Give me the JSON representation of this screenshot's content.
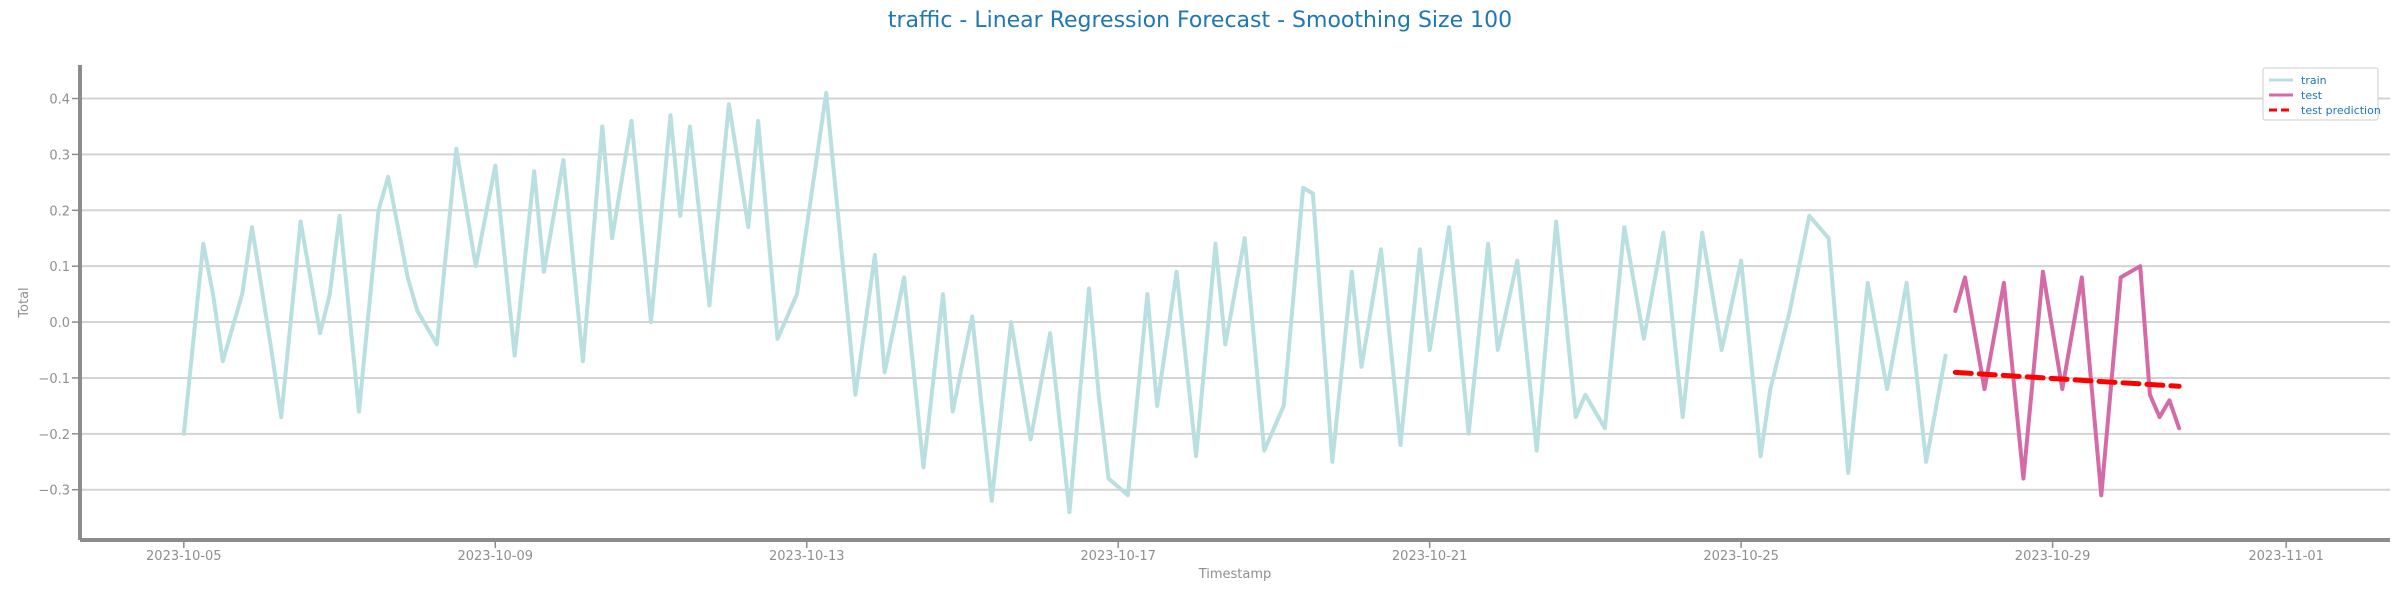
{
  "chart_data": {
    "type": "line",
    "title": "traffic - Linear Regression Forecast - Smoothing Size 100",
    "xlabel": "Timestamp",
    "ylabel": "Total",
    "xlim": [
      "2023-10-03T16:00",
      "2023-11-02T08:00"
    ],
    "ylim": [
      -0.39,
      0.46
    ],
    "x_ticks": [
      "2023-10-05",
      "2023-10-09",
      "2023-10-13",
      "2023-10-17",
      "2023-10-21",
      "2023-10-25",
      "2023-10-29",
      "2023-11-01"
    ],
    "y_ticks": [
      -0.3,
      -0.2,
      -0.1,
      0.0,
      0.1,
      0.2,
      0.3,
      0.4
    ],
    "y_tick_labels": [
      "−0.3",
      "−0.2",
      "−0.1",
      "0.0",
      "0.1",
      "0.2",
      "0.3",
      "0.4"
    ],
    "grid": "horizontal",
    "legend_position": "top-right",
    "series": [
      {
        "name": "train",
        "color": "#b9dfe0",
        "style": "solid",
        "points": [
          [
            "2023-10-05T00:00",
            -0.2
          ],
          [
            "2023-10-05T06:00",
            0.14
          ],
          [
            "2023-10-05T09:00",
            0.05
          ],
          [
            "2023-10-05T12:00",
            -0.07
          ],
          [
            "2023-10-05T18:00",
            0.05
          ],
          [
            "2023-10-05T21:00",
            0.17
          ],
          [
            "2023-10-06T03:00",
            -0.05
          ],
          [
            "2023-10-06T06:00",
            -0.17
          ],
          [
            "2023-10-06T12:00",
            0.18
          ],
          [
            "2023-10-06T18:00",
            -0.02
          ],
          [
            "2023-10-06T21:00",
            0.05
          ],
          [
            "2023-10-07T00:00",
            0.19
          ],
          [
            "2023-10-07T06:00",
            -0.16
          ],
          [
            "2023-10-07T12:00",
            0.2
          ],
          [
            "2023-10-07T15:00",
            0.26
          ],
          [
            "2023-10-07T21:00",
            0.08
          ],
          [
            "2023-10-08T00:00",
            0.02
          ],
          [
            "2023-10-08T06:00",
            -0.04
          ],
          [
            "2023-10-08T12:00",
            0.31
          ],
          [
            "2023-10-08T18:00",
            0.1
          ],
          [
            "2023-10-09T00:00",
            0.28
          ],
          [
            "2023-10-09T06:00",
            -0.06
          ],
          [
            "2023-10-09T12:00",
            0.27
          ],
          [
            "2023-10-09T15:00",
            0.09
          ],
          [
            "2023-10-09T21:00",
            0.29
          ],
          [
            "2023-10-10T03:00",
            -0.07
          ],
          [
            "2023-10-10T09:00",
            0.35
          ],
          [
            "2023-10-10T12:00",
            0.15
          ],
          [
            "2023-10-10T18:00",
            0.36
          ],
          [
            "2023-10-11T00:00",
            0.0
          ],
          [
            "2023-10-11T06:00",
            0.37
          ],
          [
            "2023-10-11T09:00",
            0.19
          ],
          [
            "2023-10-11T12:00",
            0.35
          ],
          [
            "2023-10-11T18:00",
            0.03
          ],
          [
            "2023-10-12T00:00",
            0.39
          ],
          [
            "2023-10-12T06:00",
            0.17
          ],
          [
            "2023-10-12T09:00",
            0.36
          ],
          [
            "2023-10-12T15:00",
            -0.03
          ],
          [
            "2023-10-12T21:00",
            0.05
          ],
          [
            "2023-10-13T06:00",
            0.41
          ],
          [
            "2023-10-13T12:00",
            0.05
          ],
          [
            "2023-10-13T15:00",
            -0.13
          ],
          [
            "2023-10-13T21:00",
            0.12
          ],
          [
            "2023-10-14T00:00",
            -0.09
          ],
          [
            "2023-10-14T06:00",
            0.08
          ],
          [
            "2023-10-14T12:00",
            -0.26
          ],
          [
            "2023-10-14T18:00",
            0.05
          ],
          [
            "2023-10-14T21:00",
            -0.16
          ],
          [
            "2023-10-15T03:00",
            0.01
          ],
          [
            "2023-10-15T09:00",
            -0.32
          ],
          [
            "2023-10-15T15:00",
            0.0
          ],
          [
            "2023-10-15T21:00",
            -0.21
          ],
          [
            "2023-10-16T03:00",
            -0.02
          ],
          [
            "2023-10-16T09:00",
            -0.34
          ],
          [
            "2023-10-16T15:00",
            0.06
          ],
          [
            "2023-10-16T18:00",
            -0.13
          ],
          [
            "2023-10-16T21:00",
            -0.28
          ],
          [
            "2023-10-17T03:00",
            -0.31
          ],
          [
            "2023-10-17T09:00",
            0.05
          ],
          [
            "2023-10-17T12:00",
            -0.15
          ],
          [
            "2023-10-17T18:00",
            0.09
          ],
          [
            "2023-10-18T00:00",
            -0.24
          ],
          [
            "2023-10-18T06:00",
            0.14
          ],
          [
            "2023-10-18T09:00",
            -0.04
          ],
          [
            "2023-10-18T15:00",
            0.15
          ],
          [
            "2023-10-18T21:00",
            -0.23
          ],
          [
            "2023-10-19T03:00",
            -0.15
          ],
          [
            "2023-10-19T09:00",
            0.24
          ],
          [
            "2023-10-19T12:00",
            0.23
          ],
          [
            "2023-10-19T18:00",
            -0.25
          ],
          [
            "2023-10-20T00:00",
            0.09
          ],
          [
            "2023-10-20T03:00",
            -0.08
          ],
          [
            "2023-10-20T09:00",
            0.13
          ],
          [
            "2023-10-20T15:00",
            -0.22
          ],
          [
            "2023-10-20T21:00",
            0.13
          ],
          [
            "2023-10-21T00:00",
            -0.05
          ],
          [
            "2023-10-21T06:00",
            0.17
          ],
          [
            "2023-10-21T12:00",
            -0.2
          ],
          [
            "2023-10-21T18:00",
            0.14
          ],
          [
            "2023-10-21T21:00",
            -0.05
          ],
          [
            "2023-10-22T03:00",
            0.11
          ],
          [
            "2023-10-22T09:00",
            -0.23
          ],
          [
            "2023-10-22T15:00",
            0.18
          ],
          [
            "2023-10-22T21:00",
            -0.17
          ],
          [
            "2023-10-23T00:00",
            -0.13
          ],
          [
            "2023-10-23T06:00",
            -0.19
          ],
          [
            "2023-10-23T12:00",
            0.17
          ],
          [
            "2023-10-23T18:00",
            -0.03
          ],
          [
            "2023-10-24T00:00",
            0.16
          ],
          [
            "2023-10-24T06:00",
            -0.17
          ],
          [
            "2023-10-24T12:00",
            0.16
          ],
          [
            "2023-10-24T18:00",
            -0.05
          ],
          [
            "2023-10-25T00:00",
            0.11
          ],
          [
            "2023-10-25T06:00",
            -0.24
          ],
          [
            "2023-10-25T09:00",
            -0.12
          ],
          [
            "2023-10-25T15:00",
            0.02
          ],
          [
            "2023-10-25T21:00",
            0.19
          ],
          [
            "2023-10-26T03:00",
            0.15
          ],
          [
            "2023-10-26T09:00",
            -0.27
          ],
          [
            "2023-10-26T15:00",
            0.07
          ],
          [
            "2023-10-26T21:00",
            -0.12
          ],
          [
            "2023-10-27T03:00",
            0.07
          ],
          [
            "2023-10-27T09:00",
            -0.25
          ],
          [
            "2023-10-27T15:00",
            -0.06
          ]
        ]
      },
      {
        "name": "test",
        "color": "#d46ba6",
        "style": "solid",
        "points": [
          [
            "2023-10-27T18:00",
            0.02
          ],
          [
            "2023-10-27T21:00",
            0.08
          ],
          [
            "2023-10-28T03:00",
            -0.12
          ],
          [
            "2023-10-28T09:00",
            0.07
          ],
          [
            "2023-10-28T15:00",
            -0.28
          ],
          [
            "2023-10-28T21:00",
            0.09
          ],
          [
            "2023-10-29T03:00",
            -0.12
          ],
          [
            "2023-10-29T09:00",
            0.08
          ],
          [
            "2023-10-29T15:00",
            -0.31
          ],
          [
            "2023-10-29T21:00",
            0.08
          ],
          [
            "2023-10-30T03:00",
            0.1
          ],
          [
            "2023-10-30T06:00",
            -0.13
          ],
          [
            "2023-10-30T09:00",
            -0.17
          ],
          [
            "2023-10-30T12:00",
            -0.14
          ],
          [
            "2023-10-30T15:00",
            -0.19
          ]
        ]
      },
      {
        "name": "test prediction",
        "color": "#ff0000",
        "style": "dashed",
        "points": [
          [
            "2023-10-27T18:00",
            -0.09
          ],
          [
            "2023-10-30T15:00",
            -0.115
          ]
        ]
      }
    ]
  }
}
